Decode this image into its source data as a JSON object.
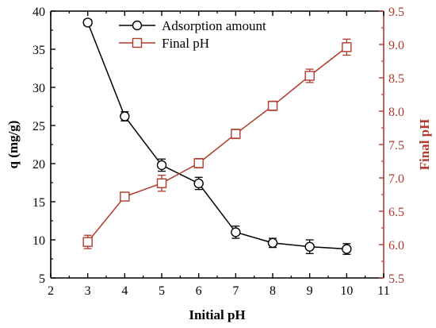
{
  "chart_data": {
    "type": "line",
    "x": [
      3,
      4,
      5,
      6,
      7,
      8,
      9,
      10
    ],
    "xlabel": "Initial pH",
    "ylabel_left": "q (mg/g)",
    "ylabel_right": "Final pH",
    "xlim": [
      2,
      11
    ],
    "ylim_left": [
      5,
      40
    ],
    "ylim_right": [
      5.5,
      9.5
    ],
    "xticks": [
      "2",
      "3",
      "4",
      "5",
      "6",
      "7",
      "8",
      "9",
      "10",
      "11"
    ],
    "yticks_left": [
      "5",
      "10",
      "15",
      "20",
      "25",
      "30",
      "35",
      "40"
    ],
    "yticks_right": [
      "5.5",
      "6.0",
      "6.5",
      "7.0",
      "7.5",
      "8.0",
      "8.5",
      "9.0",
      "9.5"
    ],
    "right_axis_color": "#b03a2e",
    "left_axis_color": "#000000",
    "grid": false,
    "legend_position": "top-center",
    "series": [
      {
        "name": "Adsorption amount",
        "axis": "left",
        "marker": "circle",
        "color": "#000000",
        "values": [
          38.5,
          26.2,
          19.8,
          17.4,
          11.0,
          9.6,
          9.1,
          8.8
        ],
        "errors": [
          0.4,
          0.6,
          0.8,
          0.8,
          0.8,
          0.6,
          0.9,
          0.7
        ]
      },
      {
        "name": "Final pH",
        "axis": "right",
        "marker": "square",
        "color": "#b03a2e",
        "values": [
          6.04,
          6.72,
          6.92,
          7.22,
          7.66,
          8.08,
          8.53,
          8.96
        ],
        "errors": [
          0.1,
          0.06,
          0.12,
          0.07,
          0.07,
          0.07,
          0.1,
          0.12
        ]
      }
    ]
  }
}
